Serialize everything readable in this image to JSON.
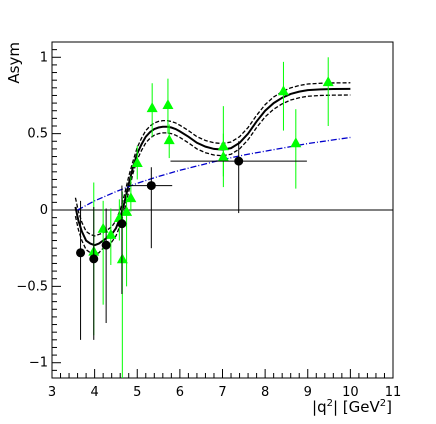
{
  "chart_data": {
    "type": "scatter",
    "title": "",
    "xlabel": "|q",
    "xlabel_sup": "2",
    "xlabel_unit": "| [GeV",
    "xlabel_unit_sup": "2",
    "xlabel_close": "]",
    "ylabel": "Asym",
    "xlim": [
      3,
      11
    ],
    "ylim": [
      -1.1,
      1.1
    ],
    "x_ticks": [
      3,
      4,
      5,
      6,
      7,
      8,
      9,
      10,
      11
    ],
    "x_tick_labels": [
      "3",
      "4",
      "5",
      "6",
      "7",
      "8",
      "9",
      "10",
      "11"
    ],
    "y_ticks": [
      -1,
      -0.5,
      0,
      0.5,
      1
    ],
    "y_tick_labels": [
      "−1",
      "−0.5",
      "0",
      "0.5",
      "1"
    ],
    "grid": false,
    "zero_line": 0,
    "series": [
      {
        "marker": "circle",
        "color": "#000000",
        "points": [
          {
            "x": 3.67,
            "y": -0.28,
            "ylo": -0.85,
            "yhi": 0.06,
            "xlo": 3.67,
            "xhi": 3.67
          },
          {
            "x": 3.98,
            "y": -0.32,
            "ylo": -0.85,
            "yhi": 0.02,
            "xlo": 3.98,
            "xhi": 3.98
          },
          {
            "x": 4.27,
            "y": -0.23,
            "ylo": -0.74,
            "yhi": 0.01,
            "xlo": 4.27,
            "xhi": 4.27
          },
          {
            "x": 4.64,
            "y": -0.09,
            "ylo": -0.55,
            "yhi": 0.16,
            "xlo": 4.64,
            "xhi": 4.64
          },
          {
            "x": 5.33,
            "y": 0.16,
            "ylo": -0.25,
            "yhi": 0.28,
            "xlo": 4.78,
            "xhi": 5.82
          },
          {
            "x": 7.38,
            "y": 0.32,
            "ylo": -0.02,
            "yhi": 0.45,
            "xlo": 5.78,
            "xhi": 8.98
          }
        ]
      },
      {
        "marker": "triangle",
        "color": "#00ff00",
        "points": [
          {
            "x": 3.98,
            "y": -0.27,
            "ylo": -0.82,
            "yhi": 0.18
          },
          {
            "x": 4.2,
            "y": -0.12,
            "ylo": -0.62,
            "yhi": 0.06
          },
          {
            "x": 4.38,
            "y": -0.16,
            "ylo": -0.36,
            "yhi": 0.01
          },
          {
            "x": 4.58,
            "y": -0.05,
            "ylo": -0.2,
            "yhi": 0.07
          },
          {
            "x": 4.65,
            "y": -0.32,
            "ylo": -1.1,
            "yhi": 0.12
          },
          {
            "x": 4.75,
            "y": -0.01,
            "ylo": -0.5,
            "yhi": 0.1
          },
          {
            "x": 4.85,
            "y": 0.08,
            "ylo": -0.01,
            "yhi": 0.22
          },
          {
            "x": 5.0,
            "y": 0.31,
            "ylo": 0.2,
            "yhi": 0.42
          },
          {
            "x": 5.35,
            "y": 0.67,
            "ylo": 0.48,
            "yhi": 0.83
          },
          {
            "x": 5.72,
            "y": 0.69,
            "ylo": 0.5,
            "yhi": 0.86
          },
          {
            "x": 5.75,
            "y": 0.46,
            "ylo": 0.34,
            "yhi": 0.56
          },
          {
            "x": 7.02,
            "y": 0.42,
            "ylo": 0.22,
            "yhi": 0.68
          },
          {
            "x": 7.02,
            "y": 0.35,
            "ylo": 0.15,
            "yhi": 0.5
          },
          {
            "x": 8.43,
            "y": 0.78,
            "ylo": 0.52,
            "yhi": 0.97
          },
          {
            "x": 8.72,
            "y": 0.44,
            "ylo": 0.14,
            "yhi": 0.66
          },
          {
            "x": 9.48,
            "y": 0.84,
            "ylo": 0.55,
            "yhi": 1.0
          }
        ]
      }
    ],
    "curves": [
      {
        "style": "solid",
        "color": "#000000",
        "points": [
          [
            3.55,
            0.02
          ],
          [
            3.62,
            -0.07
          ],
          [
            3.7,
            -0.14
          ],
          [
            3.8,
            -0.2
          ],
          [
            3.9,
            -0.22
          ],
          [
            4.0,
            -0.23
          ],
          [
            4.1,
            -0.22
          ],
          [
            4.2,
            -0.2
          ],
          [
            4.3,
            -0.18
          ],
          [
            4.4,
            -0.16
          ],
          [
            4.5,
            -0.12
          ],
          [
            4.6,
            -0.05
          ],
          [
            4.7,
            0.05
          ],
          [
            4.8,
            0.17
          ],
          [
            4.9,
            0.28
          ],
          [
            5.0,
            0.37
          ],
          [
            5.1,
            0.43
          ],
          [
            5.2,
            0.48
          ],
          [
            5.3,
            0.51
          ],
          [
            5.4,
            0.53
          ],
          [
            5.5,
            0.54
          ],
          [
            5.6,
            0.545
          ],
          [
            5.7,
            0.545
          ],
          [
            5.8,
            0.54
          ],
          [
            5.9,
            0.53
          ],
          [
            6.0,
            0.515
          ],
          [
            6.2,
            0.48
          ],
          [
            6.4,
            0.44
          ],
          [
            6.6,
            0.415
          ],
          [
            6.8,
            0.4
          ],
          [
            7.0,
            0.395
          ],
          [
            7.2,
            0.405
          ],
          [
            7.4,
            0.44
          ],
          [
            7.6,
            0.5
          ],
          [
            7.8,
            0.58
          ],
          [
            8.0,
            0.65
          ],
          [
            8.2,
            0.7
          ],
          [
            8.4,
            0.735
          ],
          [
            8.6,
            0.76
          ],
          [
            8.8,
            0.775
          ],
          [
            9.0,
            0.785
          ],
          [
            9.3,
            0.79
          ],
          [
            9.6,
            0.792
          ],
          [
            10.0,
            0.793
          ]
        ]
      },
      {
        "style": "dashed-upper",
        "color": "#000000",
        "points": [
          [
            3.55,
            0.08
          ],
          [
            3.62,
            -0.01
          ],
          [
            3.7,
            -0.08
          ],
          [
            3.8,
            -0.14
          ],
          [
            3.9,
            -0.16
          ],
          [
            4.0,
            -0.17
          ],
          [
            4.1,
            -0.16
          ],
          [
            4.2,
            -0.15
          ],
          [
            4.3,
            -0.13
          ],
          [
            4.4,
            -0.11
          ],
          [
            4.5,
            -0.07
          ],
          [
            4.6,
            0.0
          ],
          [
            4.7,
            0.1
          ],
          [
            4.8,
            0.22
          ],
          [
            4.9,
            0.32
          ],
          [
            5.0,
            0.41
          ],
          [
            5.1,
            0.47
          ],
          [
            5.2,
            0.52
          ],
          [
            5.3,
            0.55
          ],
          [
            5.4,
            0.57
          ],
          [
            5.5,
            0.58
          ],
          [
            5.6,
            0.585
          ],
          [
            5.7,
            0.585
          ],
          [
            5.8,
            0.58
          ],
          [
            5.9,
            0.57
          ],
          [
            6.0,
            0.555
          ],
          [
            6.2,
            0.52
          ],
          [
            6.4,
            0.48
          ],
          [
            6.6,
            0.455
          ],
          [
            6.8,
            0.44
          ],
          [
            7.0,
            0.435
          ],
          [
            7.2,
            0.445
          ],
          [
            7.4,
            0.48
          ],
          [
            7.6,
            0.54
          ],
          [
            7.8,
            0.62
          ],
          [
            8.0,
            0.69
          ],
          [
            8.2,
            0.74
          ],
          [
            8.4,
            0.775
          ],
          [
            8.6,
            0.8
          ],
          [
            8.8,
            0.815
          ],
          [
            9.0,
            0.825
          ],
          [
            9.3,
            0.83
          ],
          [
            9.6,
            0.832
          ],
          [
            10.0,
            0.833
          ]
        ]
      },
      {
        "style": "dashed-lower",
        "color": "#000000",
        "points": [
          [
            3.55,
            -0.04
          ],
          [
            3.62,
            -0.13
          ],
          [
            3.7,
            -0.2
          ],
          [
            3.8,
            -0.26
          ],
          [
            3.9,
            -0.28
          ],
          [
            4.0,
            -0.29
          ],
          [
            4.1,
            -0.28
          ],
          [
            4.2,
            -0.25
          ],
          [
            4.3,
            -0.23
          ],
          [
            4.4,
            -0.21
          ],
          [
            4.5,
            -0.17
          ],
          [
            4.6,
            -0.1
          ],
          [
            4.7,
            0.0
          ],
          [
            4.8,
            0.12
          ],
          [
            4.9,
            0.24
          ],
          [
            5.0,
            0.33
          ],
          [
            5.1,
            0.39
          ],
          [
            5.2,
            0.44
          ],
          [
            5.3,
            0.47
          ],
          [
            5.4,
            0.49
          ],
          [
            5.5,
            0.5
          ],
          [
            5.6,
            0.505
          ],
          [
            5.7,
            0.505
          ],
          [
            5.8,
            0.5
          ],
          [
            5.9,
            0.49
          ],
          [
            6.0,
            0.475
          ],
          [
            6.2,
            0.44
          ],
          [
            6.4,
            0.4
          ],
          [
            6.6,
            0.375
          ],
          [
            6.8,
            0.36
          ],
          [
            7.0,
            0.355
          ],
          [
            7.2,
            0.365
          ],
          [
            7.4,
            0.4
          ],
          [
            7.6,
            0.46
          ],
          [
            7.8,
            0.54
          ],
          [
            8.0,
            0.61
          ],
          [
            8.2,
            0.66
          ],
          [
            8.4,
            0.695
          ],
          [
            8.6,
            0.72
          ],
          [
            8.8,
            0.735
          ],
          [
            9.0,
            0.745
          ],
          [
            9.3,
            0.75
          ],
          [
            9.6,
            0.752
          ],
          [
            10.0,
            0.753
          ]
        ]
      },
      {
        "style": "dash-dot",
        "color": "#0000cc",
        "points": [
          [
            3.6,
            0.0
          ],
          [
            4.0,
            0.06
          ],
          [
            4.5,
            0.12
          ],
          [
            5.0,
            0.175
          ],
          [
            5.5,
            0.22
          ],
          [
            6.0,
            0.26
          ],
          [
            6.5,
            0.295
          ],
          [
            7.0,
            0.33
          ],
          [
            7.5,
            0.36
          ],
          [
            8.0,
            0.385
          ],
          [
            8.5,
            0.41
          ],
          [
            9.0,
            0.435
          ],
          [
            9.5,
            0.455
          ],
          [
            10.0,
            0.475
          ]
        ]
      }
    ]
  }
}
